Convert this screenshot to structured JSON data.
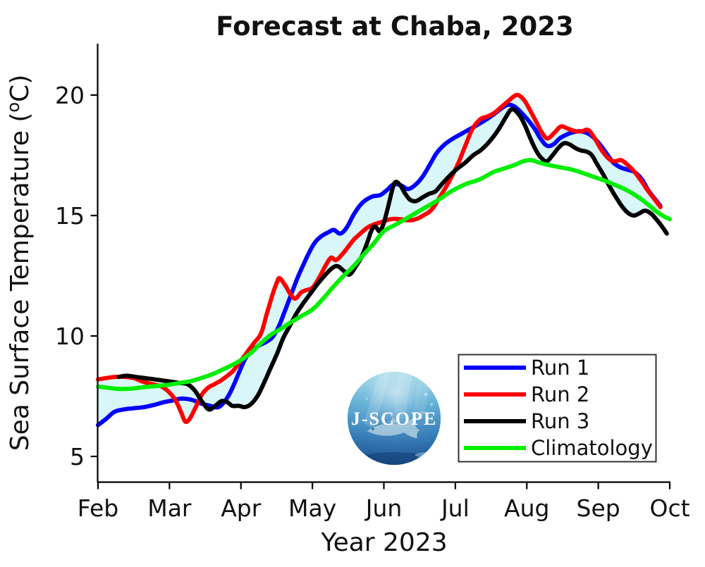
{
  "title": "Forecast at Chaba, 2023",
  "logo": {
    "text": "J-SCOPE"
  },
  "axes": {
    "x": {
      "label": "Year 2023",
      "tick_labels": [
        "Feb",
        "Mar",
        "Apr",
        "May",
        "Jun",
        "Jul",
        "Aug",
        "Sep",
        "Oct"
      ],
      "range_months": [
        0,
        8
      ]
    },
    "y": {
      "label_main": "Sea Surface Temperature (",
      "label_sup": "o",
      "label_end": "C)",
      "ticks": [
        5,
        10,
        15,
        20
      ],
      "range": [
        3.9,
        22.1
      ]
    }
  },
  "legend": {
    "position": "lower-right"
  },
  "chart_data": {
    "type": "line",
    "title": "Forecast at Chaba, 2023",
    "xlabel": "Year 2023",
    "ylabel": "Sea Surface Temperature (oC)",
    "x_unit": "months since Feb 1 2023 (0=Feb1, 8=Oct1)",
    "y_unit": "degrees C",
    "ylim": [
      3.9,
      22.1
    ],
    "grid": false,
    "band": {
      "name": "run envelope (min-max of Runs 1-3)",
      "color": "#d9f6f9"
    },
    "series": [
      {
        "name": "Run 1",
        "color": "#0000ff",
        "x": [
          0,
          0.11,
          0.23,
          0.36,
          0.5,
          0.65,
          0.8,
          0.92,
          1.04,
          1.17,
          1.31,
          1.44,
          1.57,
          1.69,
          1.8,
          1.89,
          1.99,
          2.07,
          2.16,
          2.25,
          2.35,
          2.44,
          2.53,
          2.61,
          2.7,
          2.79,
          2.88,
          2.96,
          3.04,
          3.13,
          3.22,
          3.3,
          3.39,
          3.48,
          3.57,
          3.66,
          3.75,
          3.85,
          3.95,
          4.04,
          4.14,
          4.24,
          4.34,
          4.45,
          4.55,
          4.65,
          4.74,
          4.85,
          4.97,
          5.09,
          5.21,
          5.33,
          5.44,
          5.56,
          5.67,
          5.75,
          5.84,
          5.93,
          6.02,
          6.11,
          6.19,
          6.28,
          6.37,
          6.46,
          6.55,
          6.64,
          6.73,
          6.82,
          6.91,
          7.01,
          7.11,
          7.21,
          7.31,
          7.41,
          7.51,
          7.61,
          7.7,
          7.79,
          7.87
        ],
        "y": [
          6.3,
          6.55,
          6.85,
          6.95,
          7.0,
          7.05,
          7.15,
          7.25,
          7.32,
          7.4,
          7.35,
          7.2,
          7.1,
          7.05,
          7.4,
          7.9,
          8.6,
          9.1,
          9.4,
          9.6,
          9.75,
          9.95,
          10.4,
          11.0,
          11.7,
          12.4,
          13.0,
          13.5,
          13.9,
          14.15,
          14.3,
          14.4,
          14.25,
          14.5,
          15.0,
          15.4,
          15.65,
          15.8,
          15.85,
          16.05,
          16.3,
          16.25,
          16.1,
          16.3,
          16.65,
          17.15,
          17.6,
          17.95,
          18.2,
          18.4,
          18.6,
          18.8,
          19.0,
          19.25,
          19.5,
          19.6,
          19.5,
          19.25,
          18.95,
          18.6,
          18.2,
          17.9,
          17.95,
          18.2,
          18.35,
          18.45,
          18.5,
          18.45,
          18.3,
          18.0,
          17.6,
          17.2,
          17.0,
          16.9,
          16.8,
          16.5,
          16.05,
          15.7,
          15.4
        ]
      },
      {
        "name": "Run 2",
        "color": "#ff0000",
        "x": [
          0,
          0.11,
          0.24,
          0.37,
          0.5,
          0.63,
          0.76,
          0.89,
          1.0,
          1.09,
          1.16,
          1.22,
          1.28,
          1.36,
          1.45,
          1.54,
          1.63,
          1.72,
          1.81,
          1.89,
          1.98,
          2.08,
          2.18,
          2.28,
          2.36,
          2.44,
          2.5,
          2.54,
          2.62,
          2.69,
          2.76,
          2.84,
          2.91,
          3.0,
          3.09,
          3.18,
          3.26,
          3.33,
          3.42,
          3.5,
          3.58,
          3.67,
          3.77,
          3.88,
          3.99,
          4.1,
          4.22,
          4.34,
          4.45,
          4.55,
          4.67,
          4.79,
          4.91,
          5.03,
          5.14,
          5.24,
          5.35,
          5.44,
          5.54,
          5.64,
          5.74,
          5.82,
          5.88,
          5.96,
          6.04,
          6.13,
          6.21,
          6.29,
          6.39,
          6.48,
          6.58,
          6.68,
          6.77,
          6.86,
          6.95,
          7.05,
          7.15,
          7.23,
          7.32,
          7.41,
          7.51,
          7.61,
          7.69,
          7.78,
          7.87
        ],
        "y": [
          8.2,
          8.25,
          8.3,
          8.3,
          8.25,
          8.1,
          8.0,
          7.9,
          7.65,
          7.3,
          6.85,
          6.45,
          6.55,
          7.0,
          7.55,
          7.85,
          8.0,
          8.15,
          8.35,
          8.55,
          8.9,
          9.3,
          9.7,
          10.1,
          10.9,
          11.7,
          12.2,
          12.4,
          12.1,
          11.75,
          11.55,
          11.8,
          11.9,
          12.0,
          12.4,
          12.9,
          13.25,
          13.15,
          13.4,
          13.7,
          14.0,
          14.25,
          14.5,
          14.65,
          14.75,
          14.85,
          14.85,
          14.8,
          14.85,
          15.0,
          15.25,
          15.8,
          16.4,
          17.1,
          17.9,
          18.6,
          19.0,
          19.1,
          19.25,
          19.5,
          19.75,
          19.95,
          20.0,
          19.8,
          19.4,
          18.9,
          18.45,
          18.2,
          18.45,
          18.7,
          18.6,
          18.5,
          18.5,
          18.55,
          18.2,
          17.7,
          17.35,
          17.25,
          17.3,
          17.1,
          16.8,
          16.4,
          16.05,
          15.7,
          15.35
        ]
      },
      {
        "name": "Run 3",
        "color": "#000000",
        "x": [
          0.29,
          0.4,
          0.53,
          0.66,
          0.79,
          0.91,
          1.03,
          1.14,
          1.25,
          1.35,
          1.45,
          1.55,
          1.64,
          1.73,
          1.81,
          1.88,
          1.97,
          2.06,
          2.15,
          2.24,
          2.33,
          2.42,
          2.51,
          2.59,
          2.68,
          2.77,
          2.87,
          2.97,
          3.07,
          3.17,
          3.27,
          3.35,
          3.44,
          3.52,
          3.61,
          3.69,
          3.77,
          3.83,
          3.88,
          3.94,
          4.0,
          4.07,
          4.13,
          4.17,
          4.23,
          4.3,
          4.37,
          4.45,
          4.54,
          4.63,
          4.72,
          4.81,
          4.92,
          5.03,
          5.14,
          5.25,
          5.35,
          5.44,
          5.54,
          5.63,
          5.71,
          5.78,
          5.84,
          5.91,
          5.98,
          6.05,
          6.13,
          6.2,
          6.28,
          6.36,
          6.44,
          6.52,
          6.6,
          6.68,
          6.76,
          6.84,
          6.91,
          6.99,
          7.07,
          7.16,
          7.25,
          7.34,
          7.42,
          7.5,
          7.58,
          7.65,
          7.73,
          7.81,
          7.89,
          7.96
        ],
        "y": [
          8.3,
          8.35,
          8.3,
          8.25,
          8.2,
          8.15,
          8.1,
          8.05,
          8.0,
          7.75,
          7.3,
          6.95,
          7.1,
          7.3,
          7.25,
          7.1,
          7.1,
          7.05,
          7.2,
          7.55,
          8.1,
          8.7,
          9.3,
          9.9,
          10.4,
          10.9,
          11.35,
          11.75,
          12.15,
          12.5,
          12.8,
          12.9,
          12.7,
          12.55,
          12.9,
          13.3,
          13.9,
          14.4,
          14.55,
          14.35,
          14.7,
          15.5,
          16.2,
          16.4,
          16.25,
          15.9,
          15.65,
          15.6,
          15.75,
          15.9,
          16.0,
          16.3,
          16.65,
          16.95,
          17.2,
          17.5,
          17.7,
          17.95,
          18.3,
          18.7,
          19.1,
          19.4,
          19.35,
          19.1,
          18.7,
          18.2,
          17.7,
          17.4,
          17.25,
          17.5,
          17.8,
          18.0,
          17.95,
          17.8,
          17.7,
          17.65,
          17.5,
          17.1,
          16.7,
          16.2,
          15.75,
          15.35,
          15.1,
          15.0,
          15.1,
          15.2,
          15.1,
          14.85,
          14.55,
          14.25
        ]
      },
      {
        "name": "Climatology",
        "color": "#00ee00",
        "x": [
          0,
          0.14,
          0.31,
          0.48,
          0.66,
          0.84,
          1.0,
          1.14,
          1.29,
          1.44,
          1.59,
          1.74,
          1.88,
          2.0,
          2.14,
          2.28,
          2.42,
          2.56,
          2.69,
          2.83,
          3.0,
          3.15,
          3.28,
          3.42,
          3.56,
          3.71,
          3.86,
          4.0,
          4.15,
          4.33,
          4.5,
          4.65,
          4.79,
          4.94,
          5.14,
          5.34,
          5.53,
          5.68,
          5.83,
          5.95,
          6.06,
          6.17,
          6.3,
          6.47,
          6.64,
          6.8,
          6.94,
          7.09,
          7.21,
          7.33,
          7.46,
          7.59,
          7.7,
          7.8,
          7.9,
          8.0
        ],
        "y": [
          7.9,
          7.85,
          7.8,
          7.82,
          7.88,
          7.93,
          7.98,
          8.05,
          8.12,
          8.25,
          8.4,
          8.6,
          8.8,
          9.0,
          9.3,
          9.7,
          10.05,
          10.3,
          10.55,
          10.8,
          11.1,
          11.55,
          12.0,
          12.45,
          12.85,
          13.35,
          13.85,
          14.35,
          14.6,
          14.9,
          15.2,
          15.45,
          15.7,
          16.0,
          16.3,
          16.5,
          16.8,
          16.95,
          17.1,
          17.25,
          17.3,
          17.2,
          17.1,
          17.0,
          16.9,
          16.75,
          16.6,
          16.45,
          16.3,
          16.15,
          15.95,
          15.7,
          15.45,
          15.2,
          15.0,
          14.85
        ]
      }
    ],
    "legend_entries": [
      "Run 1",
      "Run 2",
      "Run 3",
      "Climatology"
    ]
  }
}
